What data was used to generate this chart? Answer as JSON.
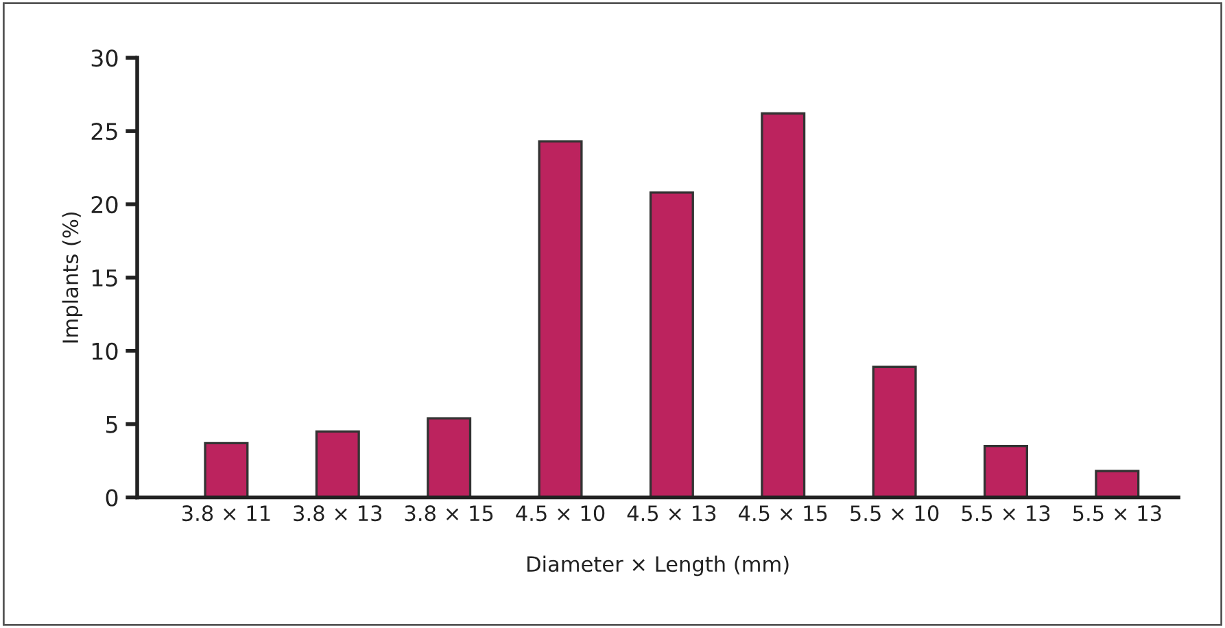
{
  "chart_data": {
    "type": "bar",
    "xlabel": "Diameter × Length (mm)",
    "ylabel": "Implants (%)",
    "categories": [
      "3.8 × 11",
      "3.8 × 13",
      "3.8 × 15",
      "4.5 × 10",
      "4.5 × 13",
      "4.5 × 15",
      "5.5 × 10",
      "5.5 × 13",
      "5.5 × 13"
    ],
    "values": [
      3.7,
      4.5,
      5.4,
      24.3,
      20.8,
      26.2,
      8.9,
      3.5,
      1.8
    ],
    "color": "#bc235e",
    "ylim": [
      0,
      30
    ],
    "yticks": [
      0,
      5,
      10,
      15,
      20,
      25,
      30
    ],
    "grid": false,
    "legend": false
  }
}
